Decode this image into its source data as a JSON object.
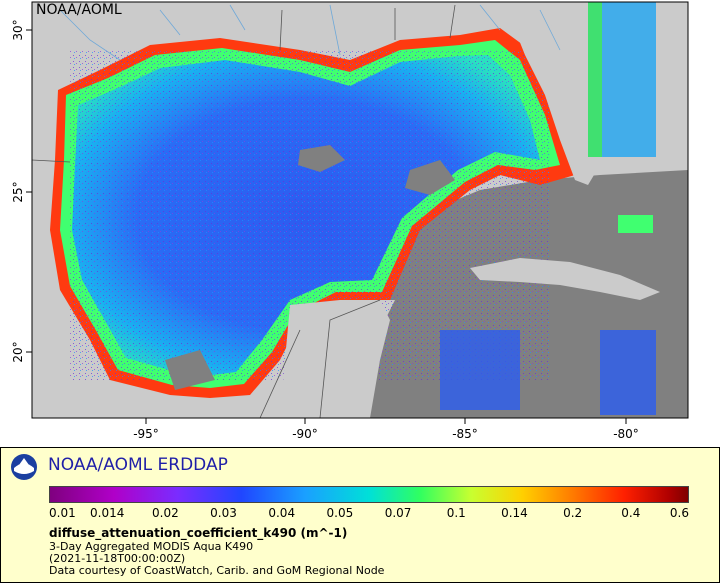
{
  "map": {
    "credit": "NOAA/AOML",
    "lon_ticks": [
      "-95°",
      "-90°",
      "-85°",
      "-80°"
    ],
    "lat_ticks": [
      "30°",
      "25°",
      "20°"
    ],
    "colors": {
      "land": "#cbcbcb",
      "no_data": "#808080",
      "border": "#555555",
      "river": "#6fa8d8"
    }
  },
  "legend": {
    "title": "NOAA/AOML ERDDAP",
    "colorbar_ticks": [
      "0.01",
      "0.014",
      "0.02",
      "0.03",
      "0.04",
      "0.05",
      "0.07",
      "0.1",
      "0.14",
      "0.2",
      "0.4",
      "0.6"
    ],
    "variable": "diffuse_attenuation_coefficient_k490 (m^-1)",
    "dataset": "3-Day Aggregated MODIS Aqua K490",
    "time": "(2021-11-18T00:00:00Z)",
    "courtesy": "Data courtesy of CoastWatch, Carib. and GoM Regional Node"
  }
}
